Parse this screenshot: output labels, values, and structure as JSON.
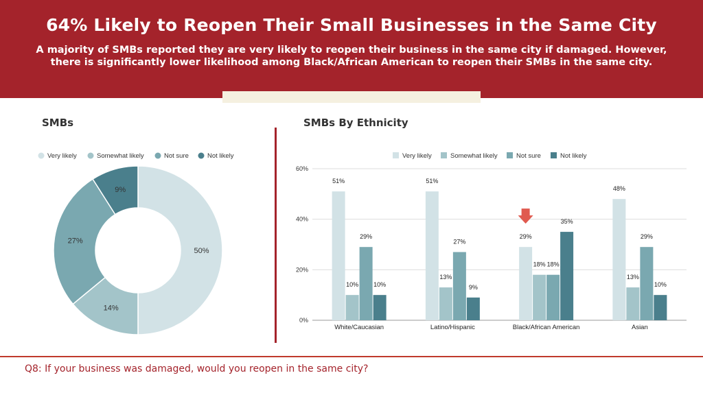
{
  "header": {
    "title": "64% Likely to Reopen Their Small Businesses in the Same City",
    "subtitle": "A majority of SMBs reported they are very likely to reopen their business in the same city if damaged. However, there is significantly lower likelihood among Black/African American to reopen their SMBs in the same city."
  },
  "footer": {
    "question": "Q8: If your business was damaged, would you reopen in the same city?"
  },
  "colors": {
    "brand_red": "#a4232b",
    "very_likely": "#d2e2e6",
    "somewhat_likely": "#a3c4c9",
    "not_sure": "#7aa8b0",
    "not_likely": "#4a7f8c",
    "arrow": "#e05a4f"
  },
  "chart_data": [
    {
      "type": "pie",
      "title": "SMBs",
      "legend_position": "top",
      "labels": [
        "Very likely",
        "Somewhat likely",
        "Not sure",
        "Not likely"
      ],
      "values": [
        50,
        14,
        27,
        9
      ],
      "value_labels": [
        "50%",
        "14%",
        "27%",
        "9%"
      ]
    },
    {
      "type": "bar",
      "title": "SMBs By Ethnicity",
      "legend_position": "top",
      "categories": [
        "White/Caucasian",
        "Latino/Hispanic",
        "Black/African American",
        "Asian"
      ],
      "series": [
        {
          "name": "Very likely",
          "values": [
            51,
            51,
            29,
            48
          ],
          "labels": [
            "51%",
            "51%",
            "29%",
            "48%"
          ]
        },
        {
          "name": "Somewhat likely",
          "values": [
            10,
            13,
            18,
            13
          ],
          "labels": [
            "10%",
            "13%",
            "18%",
            "13%"
          ]
        },
        {
          "name": "Not sure",
          "values": [
            29,
            27,
            18,
            29
          ],
          "labels": [
            "29%",
            "27%",
            "18%",
            "29%"
          ]
        },
        {
          "name": "Not likely",
          "values": [
            10,
            9,
            35,
            10
          ],
          "labels": [
            "10%",
            "9%",
            "35%",
            "10%"
          ]
        }
      ],
      "ylim": [
        0,
        60
      ],
      "yticks": [
        0,
        20,
        40,
        60
      ],
      "ytick_labels": [
        "0%",
        "20%",
        "40%",
        "60%"
      ],
      "grid": true,
      "highlight_category": "Black/African American"
    }
  ]
}
